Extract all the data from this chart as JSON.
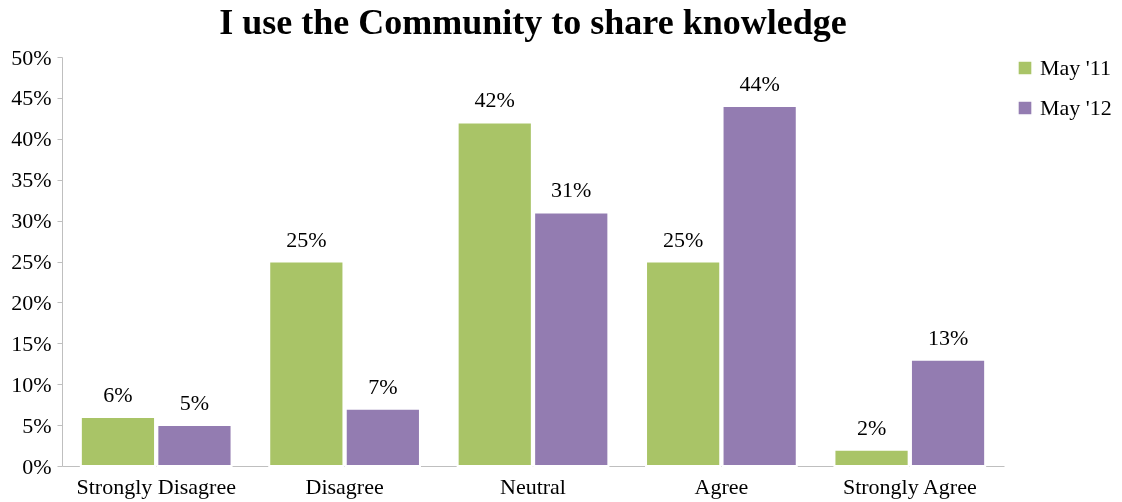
{
  "chart_data": {
    "type": "bar",
    "title": "I use the Community to share knowledge",
    "categories": [
      "Strongly Disagree",
      "Disagree",
      "Neutral",
      "Agree",
      "Strongly Agree"
    ],
    "series": [
      {
        "name": "May '11",
        "color": "#a9c467",
        "values": [
          6,
          25,
          42,
          25,
          2
        ],
        "value_labels": [
          "6%",
          "25%",
          "42%",
          "25%",
          "2%"
        ]
      },
      {
        "name": "May '12",
        "color": "#937cb1",
        "values": [
          5,
          7,
          31,
          44,
          13
        ],
        "value_labels": [
          "5%",
          "7%",
          "31%",
          "44%",
          "13%"
        ]
      }
    ],
    "ylim": [
      0,
      50
    ],
    "yticks": [
      {
        "value": 0,
        "label": "0%"
      },
      {
        "value": 5,
        "label": "5%"
      },
      {
        "value": 10,
        "label": "10%"
      },
      {
        "value": 15,
        "label": "15%"
      },
      {
        "value": 20,
        "label": "20%"
      },
      {
        "value": 25,
        "label": "25%"
      },
      {
        "value": 30,
        "label": "30%"
      },
      {
        "value": 35,
        "label": "35%"
      },
      {
        "value": 40,
        "label": "40%"
      },
      {
        "value": 45,
        "label": "45%"
      },
      {
        "value": 50,
        "label": "50%"
      }
    ],
    "grid": false,
    "legend": "right"
  }
}
